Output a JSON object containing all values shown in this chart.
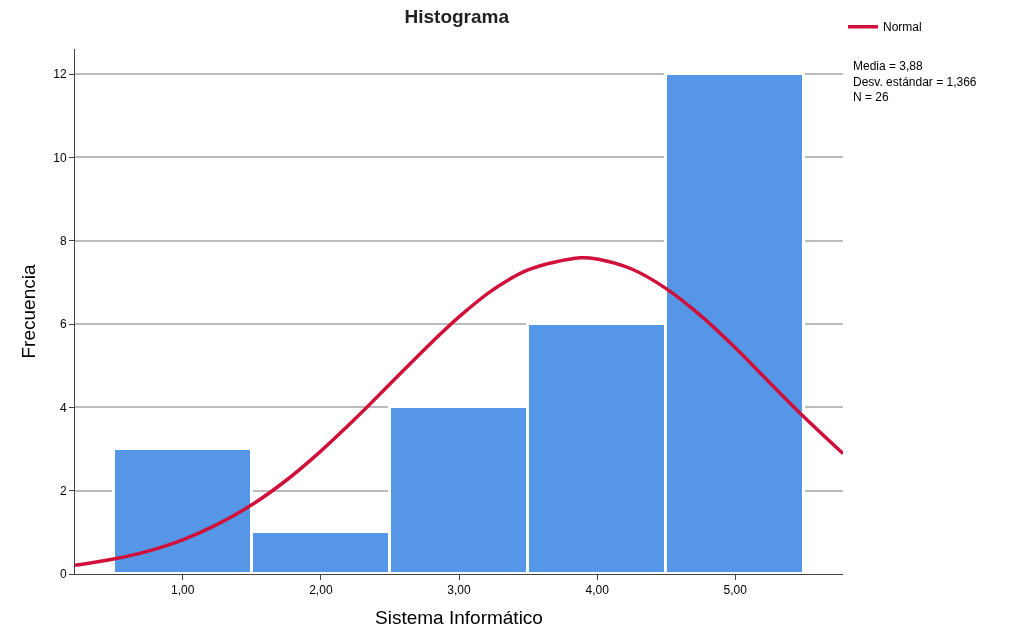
{
  "chart_data": {
    "type": "histogram",
    "title": "Histograma",
    "xlabel": "Sistema Informático",
    "ylabel": "Frecuencia",
    "series": [
      {
        "color": "#5596e6",
        "bins": [
          0.5,
          1.5,
          2.5,
          3.5,
          4.5,
          5.5
        ],
        "values": [
          3,
          1,
          4,
          6,
          12
        ]
      },
      {
        "type": "line",
        "name": "Normal",
        "color": "#d0103a",
        "x": [
          0.22,
          0.5,
          0.75,
          1.0,
          1.25,
          1.5,
          1.75,
          2.0,
          2.25,
          2.5,
          2.75,
          3.0,
          3.25,
          3.5,
          3.88,
          4.0,
          4.25,
          4.5,
          4.75,
          5.0,
          5.25,
          5.5,
          5.78
        ],
        "values": [
          0.21,
          0.36,
          0.55,
          0.82,
          1.19,
          1.66,
          2.25,
          2.95,
          3.73,
          4.56,
          5.39,
          6.17,
          6.83,
          7.3,
          7.59,
          7.56,
          7.32,
          6.85,
          6.2,
          5.43,
          4.59,
          3.76,
          2.89
        ]
      }
    ],
    "xlim": [
      0.22,
      5.78
    ],
    "xticks": [
      {
        "value": 1,
        "label": "1,00"
      },
      {
        "value": 2,
        "label": "2,00"
      },
      {
        "value": 3,
        "label": "3,00"
      },
      {
        "value": 4,
        "label": "4,00"
      },
      {
        "value": 5,
        "label": "5,00"
      }
    ],
    "ylim": [
      0,
      12.6
    ],
    "yticks": [
      0,
      2,
      4,
      6,
      8,
      10,
      12
    ],
    "grid": "y",
    "legend": "top right",
    "marker": "none",
    "line_style": "solid",
    "annotations": [
      "Media = 3,88",
      "Desv. estándar = 1,366",
      "N = 26"
    ]
  }
}
